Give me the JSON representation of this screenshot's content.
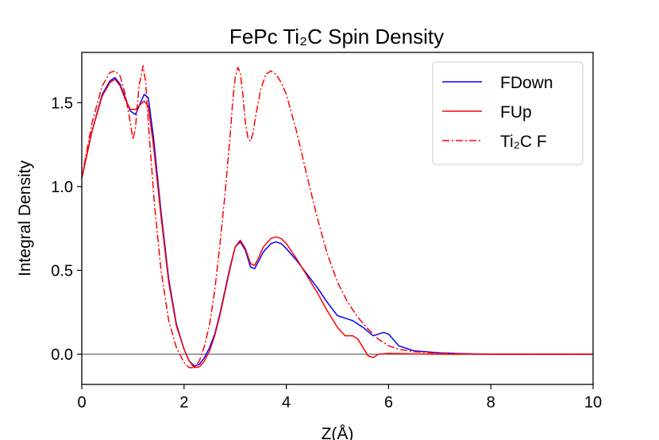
{
  "chart_data": {
    "type": "line",
    "title": "FePc Ti₂C Spin Density",
    "xlabel": "Z(Å)",
    "ylabel": "Integral Density",
    "xlim": [
      0,
      10
    ],
    "ylim": [
      -0.18,
      1.8
    ],
    "xticks": [
      "0",
      "2",
      "4",
      "6",
      "8",
      "10"
    ],
    "yticks": [
      "0.0",
      "0.5",
      "1.0",
      "1.5"
    ],
    "grid": false,
    "legend_position": "top-right",
    "reference_line": {
      "y": 0,
      "color": "#000000"
    },
    "series": [
      {
        "name": "FDown",
        "color": "#0000ff",
        "style": "solid",
        "x": [
          0.0,
          0.2,
          0.4,
          0.55,
          0.65,
          0.75,
          0.85,
          0.95,
          1.05,
          1.15,
          1.22,
          1.3,
          1.4,
          1.55,
          1.7,
          1.85,
          2.0,
          2.1,
          2.2,
          2.3,
          2.4,
          2.5,
          2.6,
          2.7,
          2.8,
          2.9,
          3.0,
          3.1,
          3.2,
          3.3,
          3.38,
          3.45,
          3.55,
          3.7,
          3.8,
          3.9,
          4.0,
          4.2,
          4.4,
          4.6,
          4.8,
          5.0,
          5.2,
          5.3,
          5.5,
          5.7,
          5.8,
          5.9,
          6.0,
          6.2,
          6.5,
          7.0,
          7.5,
          8.0,
          9.0,
          10.0
        ],
        "y": [
          1.05,
          1.33,
          1.55,
          1.63,
          1.65,
          1.61,
          1.53,
          1.45,
          1.43,
          1.5,
          1.55,
          1.53,
          1.3,
          0.85,
          0.45,
          0.18,
          0.03,
          -0.04,
          -0.07,
          -0.06,
          -0.02,
          0.04,
          0.12,
          0.24,
          0.38,
          0.52,
          0.64,
          0.67,
          0.62,
          0.52,
          0.51,
          0.55,
          0.61,
          0.66,
          0.67,
          0.66,
          0.63,
          0.56,
          0.48,
          0.4,
          0.31,
          0.23,
          0.21,
          0.2,
          0.16,
          0.11,
          0.12,
          0.13,
          0.12,
          0.05,
          0.02,
          0.008,
          0.003,
          0.0,
          0.0,
          0.0
        ]
      },
      {
        "name": "FUp",
        "color": "#ff0000",
        "style": "solid",
        "x": [
          0.0,
          0.2,
          0.4,
          0.55,
          0.65,
          0.75,
          0.85,
          0.95,
          1.05,
          1.15,
          1.22,
          1.3,
          1.4,
          1.55,
          1.7,
          1.85,
          2.0,
          2.1,
          2.2,
          2.3,
          2.4,
          2.5,
          2.6,
          2.7,
          2.8,
          2.9,
          3.0,
          3.1,
          3.2,
          3.3,
          3.38,
          3.45,
          3.55,
          3.7,
          3.8,
          3.9,
          4.0,
          4.2,
          4.4,
          4.6,
          4.8,
          5.0,
          5.15,
          5.3,
          5.4,
          5.5,
          5.6,
          5.7,
          5.8,
          6.0,
          6.5,
          7.0,
          8.0,
          9.0,
          10.0
        ],
        "y": [
          1.05,
          1.33,
          1.54,
          1.62,
          1.64,
          1.6,
          1.52,
          1.46,
          1.46,
          1.49,
          1.51,
          1.48,
          1.25,
          0.82,
          0.43,
          0.17,
          0.03,
          -0.04,
          -0.08,
          -0.075,
          -0.04,
          0.02,
          0.11,
          0.23,
          0.37,
          0.51,
          0.64,
          0.68,
          0.63,
          0.54,
          0.53,
          0.57,
          0.64,
          0.69,
          0.7,
          0.69,
          0.66,
          0.57,
          0.47,
          0.37,
          0.26,
          0.16,
          0.11,
          0.11,
          0.09,
          0.04,
          -0.01,
          -0.02,
          0.0,
          0.005,
          0.002,
          0.0,
          0.0,
          0.0,
          0.0
        ]
      },
      {
        "name": "Ti₂C F",
        "color": "#ff0000",
        "style": "dashdot",
        "x": [
          0.0,
          0.2,
          0.4,
          0.55,
          0.65,
          0.75,
          0.85,
          0.95,
          1.0,
          1.05,
          1.12,
          1.2,
          1.25,
          1.32,
          1.42,
          1.55,
          1.7,
          1.85,
          2.0,
          2.1,
          2.2,
          2.3,
          2.4,
          2.5,
          2.6,
          2.7,
          2.8,
          2.9,
          2.95,
          3.0,
          3.05,
          3.1,
          3.15,
          3.2,
          3.25,
          3.3,
          3.35,
          3.4,
          3.5,
          3.6,
          3.7,
          3.8,
          3.9,
          4.0,
          4.2,
          4.4,
          4.6,
          4.8,
          5.0,
          5.2,
          5.4,
          5.6,
          5.8,
          6.0,
          6.2,
          6.5,
          7.0,
          7.5,
          8.0,
          9.0,
          10.0
        ],
        "y": [
          1.05,
          1.38,
          1.6,
          1.68,
          1.69,
          1.66,
          1.55,
          1.38,
          1.28,
          1.35,
          1.6,
          1.72,
          1.62,
          1.3,
          0.9,
          0.5,
          0.2,
          0.04,
          -0.05,
          -0.08,
          -0.08,
          -0.04,
          0.05,
          0.18,
          0.38,
          0.65,
          0.95,
          1.3,
          1.5,
          1.65,
          1.71,
          1.68,
          1.55,
          1.38,
          1.29,
          1.27,
          1.32,
          1.42,
          1.58,
          1.67,
          1.69,
          1.67,
          1.62,
          1.55,
          1.33,
          1.07,
          0.82,
          0.6,
          0.43,
          0.31,
          0.22,
          0.15,
          0.09,
          0.05,
          0.03,
          0.015,
          0.005,
          0.002,
          0.0,
          0.0,
          0.0
        ]
      }
    ]
  }
}
